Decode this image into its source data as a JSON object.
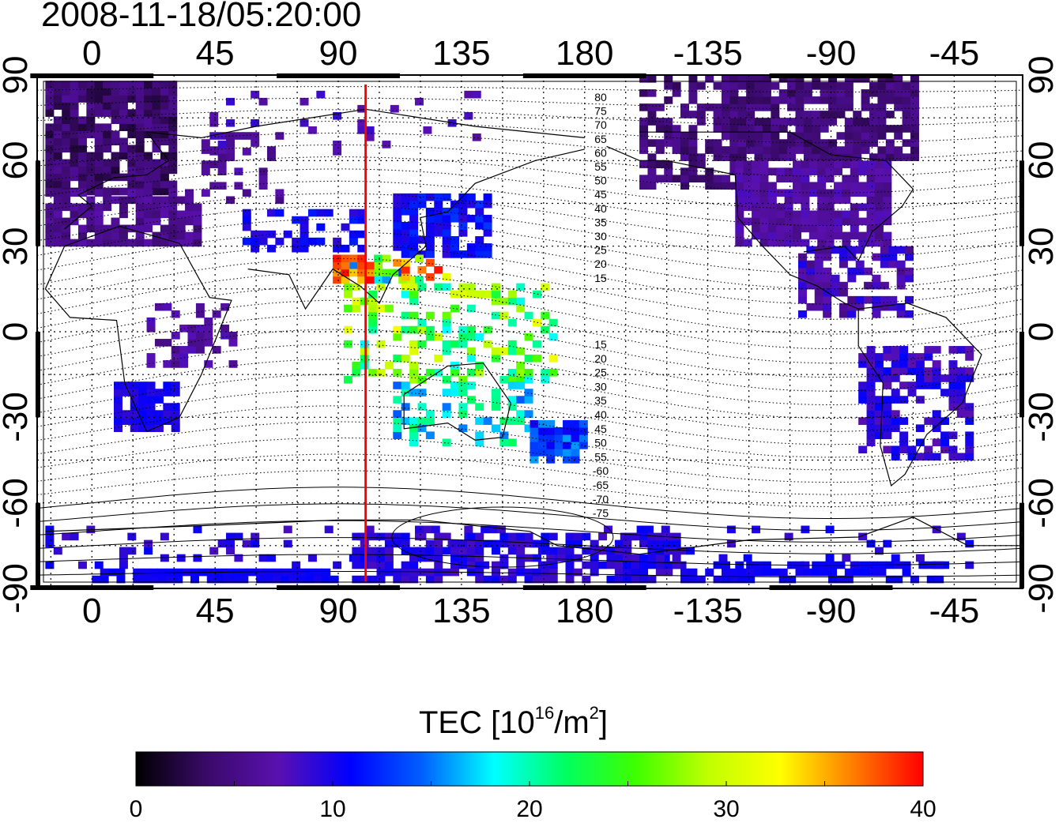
{
  "title": "2008-11-18/05:20:00",
  "map": {
    "x_tick_labels": [
      "0",
      "45",
      "90",
      "135",
      "180",
      "-135",
      "-90",
      "-45"
    ],
    "y_tick_labels": [
      "90",
      "60",
      "30",
      "0",
      "-30",
      "-60",
      "-90"
    ],
    "lon_range": [
      -20,
      340
    ],
    "lat_range": [
      -90,
      90
    ],
    "meridian_marker": {
      "longitude": 100,
      "color": "#ff0000"
    },
    "contour_labels_north": [
      "80",
      "75",
      "70",
      "65",
      "60",
      "55",
      "50",
      "45",
      "40",
      "35",
      "30",
      "25",
      "20",
      "15"
    ],
    "contour_labels_south": [
      "15",
      "20",
      "25",
      "30",
      "35",
      "40",
      "45",
      "50",
      "55",
      "-60",
      "-65",
      "-70",
      "-75"
    ]
  },
  "colorbar": {
    "label_prefix": "TEC  [10",
    "label_exp": "16",
    "label_mid": "/m",
    "label_exp2": "2",
    "label_suffix": "]",
    "min": 0,
    "max": 40,
    "tick_labels": [
      "0",
      "10",
      "20",
      "30",
      "40"
    ],
    "colors": [
      "#000000",
      "#3a0a6a",
      "#5a10b0",
      "#0000ff",
      "#0060ff",
      "#00ffff",
      "#00ff60",
      "#40ff00",
      "#c0ff00",
      "#ffff00",
      "#ff8000",
      "#ff0000"
    ]
  }
}
